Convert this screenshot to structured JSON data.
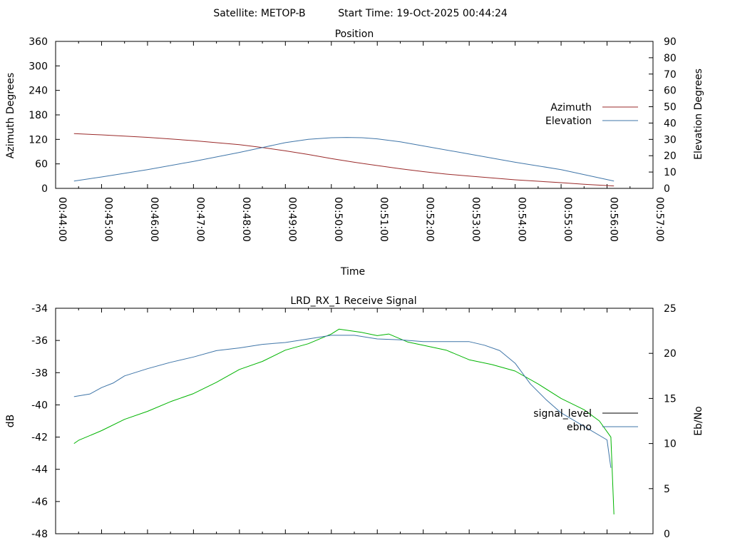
{
  "header": {
    "satellite_label": "Satellite: METOP-B",
    "start_time_label": "Start Time: 19-Oct-2025 00:44:24"
  },
  "chart_data": [
    {
      "type": "line",
      "title": "Position",
      "xlabel": "Time",
      "ylabel_left": "Azimuth Degrees",
      "ylabel_right": "Elevation Degrees",
      "xlim": [
        "00:44:00",
        "00:57:00"
      ],
      "x_ticks": [
        "00:44:00",
        "00:45:00",
        "00:46:00",
        "00:47:00",
        "00:48:00",
        "00:49:00",
        "00:50:00",
        "00:51:00",
        "00:52:00",
        "00:53:00",
        "00:54:00",
        "00:55:00",
        "00:56:00",
        "00:57:00"
      ],
      "ylim_left": [
        0,
        360
      ],
      "yticks_left": [
        "0",
        "60",
        "120",
        "180",
        "240",
        "300",
        "360"
      ],
      "ylim_right": [
        0,
        90
      ],
      "yticks_right": [
        "0",
        "10",
        "20",
        "30",
        "40",
        "50",
        "60",
        "70",
        "80",
        "90"
      ],
      "legend_position": "right",
      "series": [
        {
          "name": "Azimuth",
          "axis": "left",
          "color": "#9a2a2a",
          "x": [
            "00:44:24",
            "00:45:00",
            "00:46:00",
            "00:47:00",
            "00:48:00",
            "00:48:30",
            "00:49:00",
            "00:49:30",
            "00:50:00",
            "00:50:30",
            "00:51:00",
            "00:51:30",
            "00:52:00",
            "00:52:30",
            "00:53:00",
            "00:54:00",
            "00:55:00",
            "00:55:30",
            "00:56:09"
          ],
          "y": [
            134,
            131,
            125,
            117,
            107,
            100,
            92,
            83,
            73,
            64,
            56,
            48,
            41,
            35,
            30,
            21,
            14,
            10,
            6
          ]
        },
        {
          "name": "Elevation",
          "axis": "right",
          "color": "#3f75a8",
          "x": [
            "00:44:24",
            "00:45:00",
            "00:46:00",
            "00:47:00",
            "00:48:00",
            "00:48:30",
            "00:49:00",
            "00:49:30",
            "00:50:00",
            "00:50:20",
            "00:50:40",
            "00:51:00",
            "00:51:30",
            "00:52:00",
            "00:53:00",
            "00:54:00",
            "00:55:00",
            "00:56:09"
          ],
          "y": [
            4.5,
            7,
            11.5,
            16.5,
            22,
            25,
            28,
            30,
            31,
            31.2,
            31,
            30.3,
            28.5,
            26,
            21,
            16,
            11.5,
            4.5
          ]
        }
      ]
    },
    {
      "type": "line",
      "title": "LRD_RX_1 Receive Signal",
      "ylabel_left": "dB",
      "ylabel_right": "Eb/No",
      "xlim": [
        "00:44:00",
        "00:57:00"
      ],
      "ylim_left": [
        -48,
        -34
      ],
      "yticks_left": [
        "-48",
        "-46",
        "-44",
        "-42",
        "-40",
        "-38",
        "-36",
        "-34"
      ],
      "ylim_right": [
        0,
        25
      ],
      "yticks_right": [
        "0",
        "5",
        "10",
        "15",
        "20",
        "25"
      ],
      "legend_position": "right",
      "series": [
        {
          "name": "signal_level",
          "axis": "left",
          "color": "#00b400",
          "x": [
            "00:44:24",
            "00:44:30",
            "00:45:00",
            "00:45:30",
            "00:46:00",
            "00:46:30",
            "00:47:00",
            "00:47:30",
            "00:48:00",
            "00:48:30",
            "00:49:00",
            "00:49:30",
            "00:50:00",
            "00:50:10",
            "00:50:40",
            "00:51:00",
            "00:51:15",
            "00:51:40",
            "00:52:00",
            "00:52:30",
            "00:53:00",
            "00:53:30",
            "00:54:00",
            "00:54:30",
            "00:55:00",
            "00:55:30",
            "00:55:50",
            "00:56:05",
            "00:56:09"
          ],
          "y": [
            -42.4,
            -42.2,
            -41.6,
            -40.9,
            -40.4,
            -39.8,
            -39.3,
            -38.6,
            -37.8,
            -37.3,
            -36.6,
            -36.2,
            -35.6,
            -35.3,
            -35.5,
            -35.7,
            -35.6,
            -36.1,
            -36.3,
            -36.6,
            -37.2,
            -37.5,
            -37.9,
            -38.7,
            -39.6,
            -40.3,
            -41.0,
            -42.0,
            -46.8
          ]
        },
        {
          "name": "ebno",
          "axis": "right",
          "color": "#3f75a8",
          "x": [
            "00:44:24",
            "00:44:45",
            "00:45:00",
            "00:45:15",
            "00:45:30",
            "00:46:00",
            "00:46:30",
            "00:47:00",
            "00:47:30",
            "00:48:00",
            "00:48:30",
            "00:49:00",
            "00:49:30",
            "00:50:00",
            "00:50:30",
            "00:51:00",
            "00:51:30",
            "00:52:00",
            "00:52:30",
            "00:53:00",
            "00:53:20",
            "00:53:40",
            "00:54:00",
            "00:54:20",
            "00:54:40",
            "00:55:00",
            "00:55:30",
            "00:56:00",
            "00:56:05"
          ],
          "y": [
            15.2,
            15.5,
            16.2,
            16.7,
            17.5,
            18.3,
            19.0,
            19.6,
            20.3,
            20.6,
            21.0,
            21.2,
            21.6,
            22.0,
            22.0,
            21.6,
            21.5,
            21.3,
            21.3,
            21.3,
            20.9,
            20.3,
            18.9,
            16.6,
            14.9,
            13.4,
            11.9,
            10.4,
            7.3
          ]
        }
      ]
    }
  ]
}
